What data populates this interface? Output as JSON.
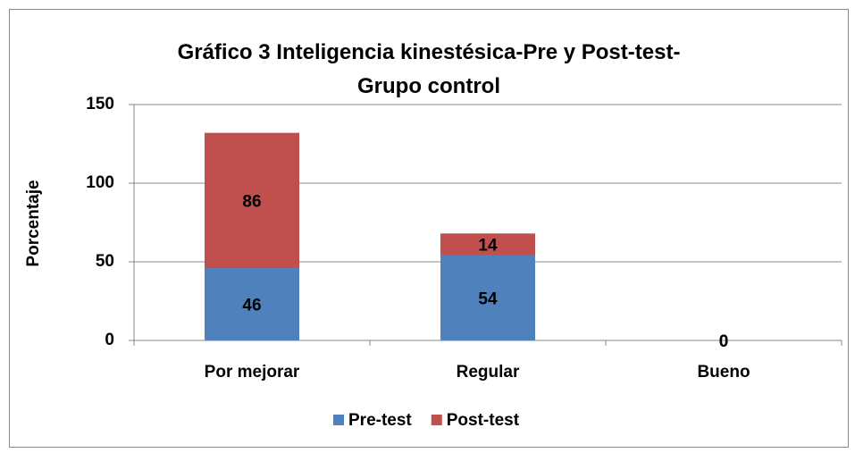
{
  "chart_data": {
    "type": "stacked_bar",
    "title": "Gráfico 3 Inteligencia kinestésica-Pre y Post-test-Grupo control",
    "y_label": "Porcentaje",
    "categories": [
      "Por mejorar",
      "Regular",
      "Bueno"
    ],
    "series": [
      {
        "name": "Pre-test",
        "color": "#4f81bd",
        "values": [
          46,
          54,
          0
        ]
      },
      {
        "name": "Post-test",
        "color": "#c0504d",
        "values": [
          86,
          14,
          0
        ]
      }
    ],
    "ylim": [
      0,
      150
    ],
    "yticks": [
      0,
      50,
      100,
      150
    ],
    "grid": true,
    "legend": "bottom"
  }
}
